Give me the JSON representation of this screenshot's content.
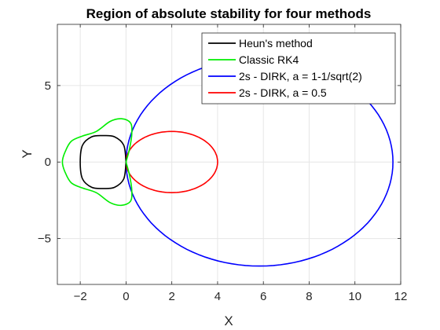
{
  "chart_data": {
    "type": "line",
    "title": "Region of absolute stability for four methods",
    "xlabel": "X",
    "ylabel": "Y",
    "xlim": [
      -3,
      12
    ],
    "ylim": [
      -8,
      9
    ],
    "xticks": [
      -2,
      0,
      2,
      4,
      6,
      8,
      10,
      12
    ],
    "yticks": [
      -5,
      0,
      5
    ],
    "grid": true,
    "legend_position": "top-right",
    "series": [
      {
        "name": "Heun's method",
        "color": "#000000",
        "points": [
          [
            0,
            0
          ],
          [
            -0.1,
            1.1
          ],
          [
            -0.5,
            1.65
          ],
          [
            -1,
            1.73
          ],
          [
            -1.5,
            1.65
          ],
          [
            -1.9,
            1.1
          ],
          [
            -2,
            0
          ],
          [
            -1.9,
            -1.1
          ],
          [
            -1.5,
            -1.65
          ],
          [
            -1,
            -1.73
          ],
          [
            -0.5,
            -1.65
          ],
          [
            -0.1,
            -1.1
          ],
          [
            0,
            0
          ]
        ]
      },
      {
        "name": "Classic RK4",
        "color": "#00ee00",
        "points": [
          [
            0,
            0
          ],
          [
            0.15,
            0.85
          ],
          [
            0.25,
            1.8
          ],
          [
            0.2,
            2.55
          ],
          [
            -0.2,
            2.83
          ],
          [
            -0.7,
            2.65
          ],
          [
            -1.3,
            2
          ],
          [
            -1.9,
            1.7
          ],
          [
            -2.4,
            1.35
          ],
          [
            -2.68,
            0.6
          ],
          [
            -2.78,
            0
          ],
          [
            -2.68,
            -0.6
          ],
          [
            -2.4,
            -1.35
          ],
          [
            -1.9,
            -1.7
          ],
          [
            -1.3,
            -2
          ],
          [
            -0.7,
            -2.65
          ],
          [
            -0.2,
            -2.83
          ],
          [
            0.2,
            -2.55
          ],
          [
            0.25,
            -1.8
          ],
          [
            0.15,
            -0.85
          ],
          [
            0,
            0
          ]
        ]
      },
      {
        "name": "2s - DIRK, a = 1-1/sqrt(2)",
        "color": "#0000ff",
        "ellipse": {
          "cx": 5.83,
          "rx": 5.83,
          "ry": 6.8
        }
      },
      {
        "name": "2s - DIRK, a = 0.5",
        "color": "#ff0000",
        "ellipse": {
          "cx": 2,
          "rx": 2,
          "ry": 2
        }
      }
    ]
  }
}
